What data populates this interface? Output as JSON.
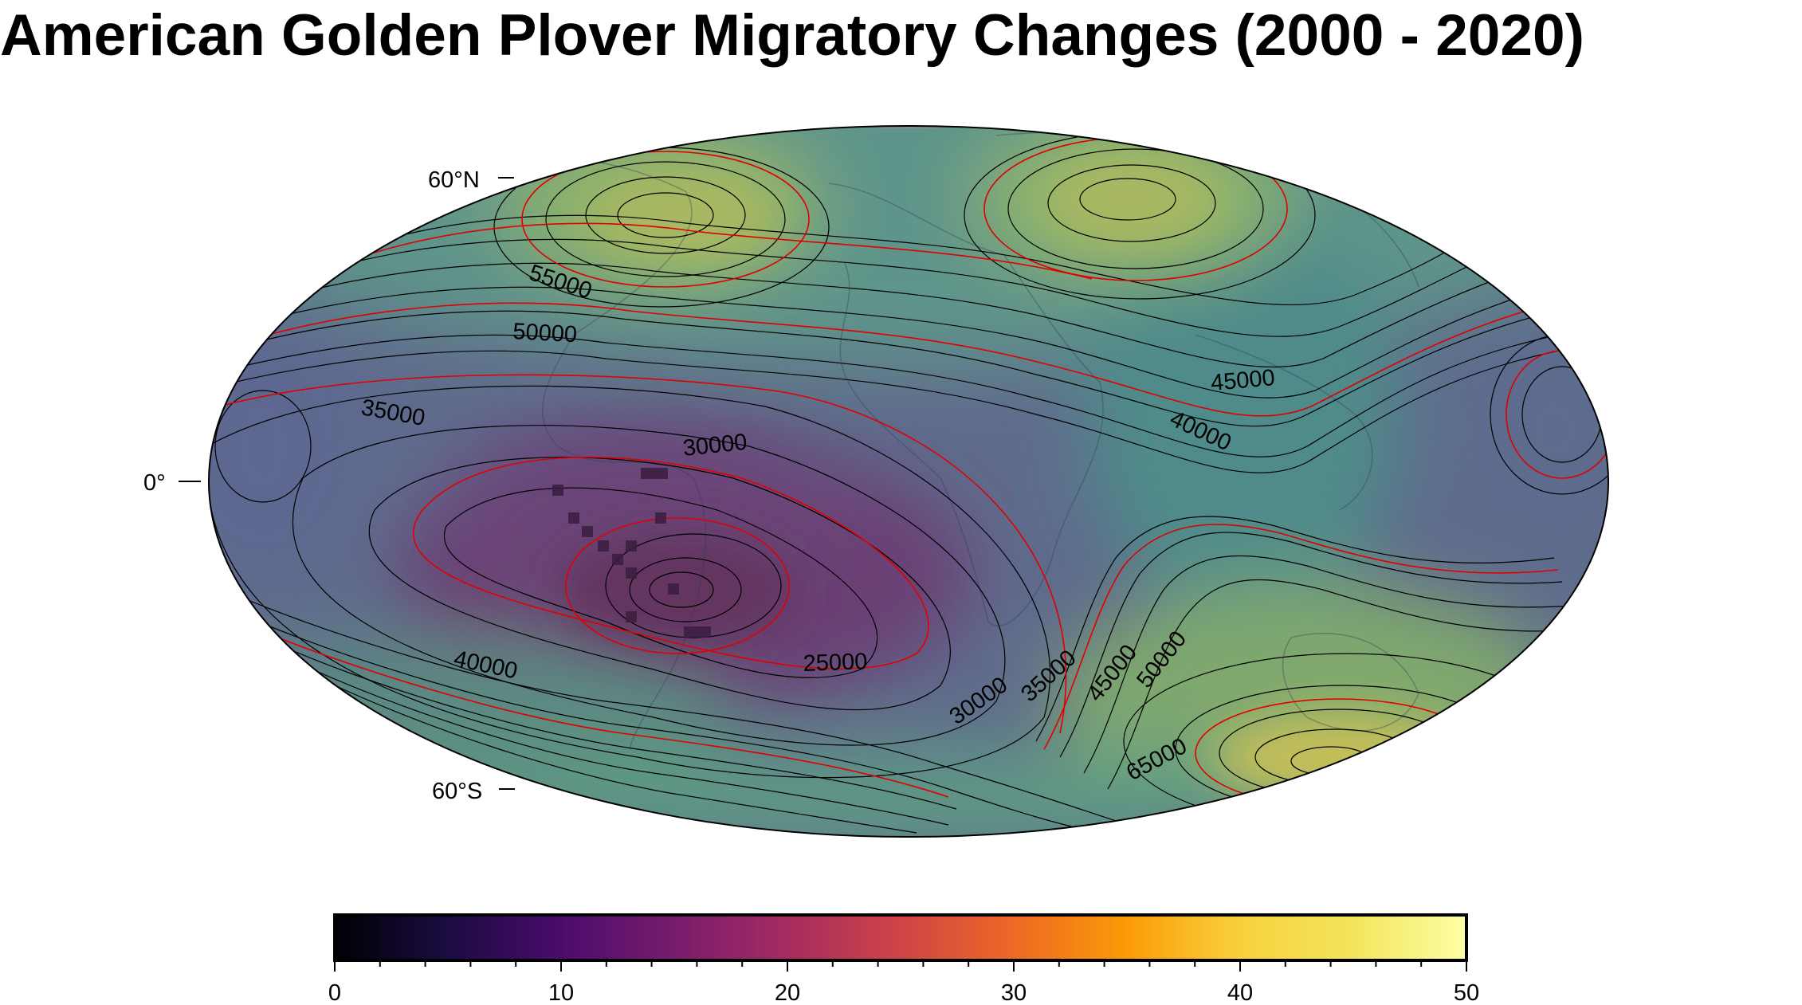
{
  "title": "American Golden Plover Migratory Changes (2000 - 2020)",
  "projection": "hammer",
  "latitude_labels": [
    "60°N",
    "0°",
    "60°S"
  ],
  "contours": {
    "line_color": "#000000",
    "major_color": "#e00000",
    "labels": [
      "55000",
      "50000",
      "35000",
      "30000",
      "45000",
      "40000",
      "40000",
      "25000",
      "30000",
      "35000",
      "45000",
      "50000",
      "65000"
    ]
  },
  "colorbar": {
    "colormap": "inferno",
    "min": 0,
    "max": 50,
    "ticks": [
      "0",
      "10",
      "20",
      "30",
      "40",
      "50"
    ],
    "minor_tick_step": 2
  },
  "colors": {
    "ocean_low": "#5a5a8c",
    "purple_low": "#6a3f76",
    "teal_mid": "#5a9187",
    "green_high": "#8cae6a",
    "yellow_high": "#c7c15b"
  },
  "sightings_markers_count": 14
}
